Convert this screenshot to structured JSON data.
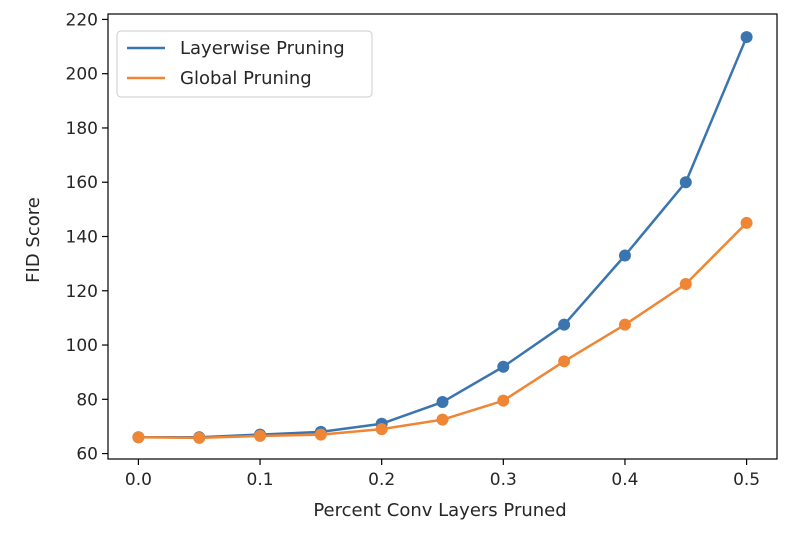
{
  "chart_data": {
    "type": "line",
    "title": "",
    "xlabel": "Percent Conv Layers Pruned",
    "ylabel": "FID Score",
    "xlim": [
      -0.025,
      0.525
    ],
    "ylim": [
      58,
      222
    ],
    "x_ticks": [
      0.0,
      0.1,
      0.2,
      0.3,
      0.4,
      0.5
    ],
    "x_tick_labels": [
      "0.0",
      "0.1",
      "0.2",
      "0.3",
      "0.4",
      "0.5"
    ],
    "y_ticks": [
      60,
      80,
      100,
      120,
      140,
      160,
      180,
      200,
      220
    ],
    "y_tick_labels": [
      "60",
      "80",
      "100",
      "120",
      "140",
      "160",
      "180",
      "200",
      "220"
    ],
    "grid": false,
    "legend_position": "top-left",
    "x": [
      0.0,
      0.05,
      0.1,
      0.15,
      0.2,
      0.25,
      0.3,
      0.35,
      0.4,
      0.45,
      0.5
    ],
    "series": [
      {
        "name": "Layerwise Pruning",
        "color": "#3b75af",
        "values": [
          66,
          66,
          67,
          68,
          71,
          79,
          92,
          107.5,
          133,
          160,
          213.5
        ]
      },
      {
        "name": "Global Pruning",
        "color": "#ef8636",
        "values": [
          66,
          65.8,
          66.5,
          67,
          69,
          72.5,
          79.5,
          94,
          107.5,
          122.5,
          145
        ]
      }
    ]
  }
}
